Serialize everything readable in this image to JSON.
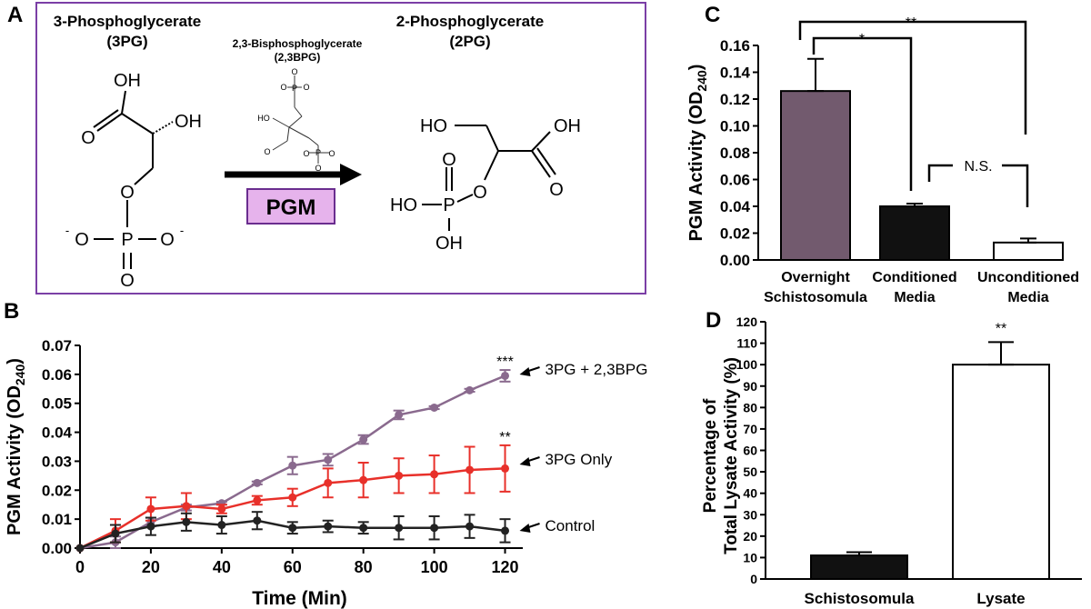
{
  "panel_labels": {
    "a": "A",
    "b": "B",
    "c": "C",
    "d": "D"
  },
  "panel_a": {
    "reactant_name": "3-Phosphoglycerate",
    "reactant_abbr": "(3PG)",
    "cofactor_name": "2,3-Bisphosphoglycerate",
    "cofactor_abbr": "(2,3BPG)",
    "product_name": "2-Phosphoglycerate",
    "product_abbr": "(2PG)",
    "enzyme": "PGM",
    "colors": {
      "border": "#7b3fa6",
      "enzyme_fill": "#e6b3ec",
      "enzyme_border": "#6a2d8f"
    }
  },
  "chart_data": [
    {
      "panel": "B",
      "type": "line",
      "xlabel": "Time (Min)",
      "ylabel": "PGM Activity (OD240)",
      "ylabel_main": "PGM Activity  (OD",
      "ylabel_sub": "240",
      "ylabel_end": ")",
      "xlim": [
        0,
        125
      ],
      "ylim": [
        0,
        0.07
      ],
      "xticks": [
        "0",
        "20",
        "40",
        "60",
        "80",
        "100",
        "120"
      ],
      "yticks": [
        "0.00",
        "0.01",
        "0.02",
        "0.03",
        "0.04",
        "0.05",
        "0.06",
        "0.07"
      ],
      "x": [
        0,
        10,
        20,
        30,
        40,
        50,
        60,
        70,
        80,
        90,
        100,
        110,
        120
      ],
      "series": [
        {
          "name": "3PG + 2,3BPG",
          "color": "#8a6a8e",
          "values": [
            0,
            0.002,
            0.009,
            0.014,
            0.0155,
            0.0225,
            0.0285,
            0.0305,
            0.0375,
            0.046,
            0.0485,
            0.0545,
            0.0595
          ],
          "errors": [
            0,
            0.002,
            0.0015,
            0.001,
            0.0005,
            0.0005,
            0.003,
            0.002,
            0.0015,
            0.0015,
            0.0005,
            0.0005,
            0.002
          ]
        },
        {
          "name": "3PG Only",
          "color": "#e8302a",
          "values": [
            0,
            0.006,
            0.0135,
            0.0145,
            0.0135,
            0.0165,
            0.0175,
            0.0225,
            0.0235,
            0.025,
            0.0255,
            0.027,
            0.0275
          ],
          "errors": [
            0,
            0.004,
            0.004,
            0.0045,
            0.0015,
            0.0015,
            0.003,
            0.005,
            0.006,
            0.006,
            0.0065,
            0.008,
            0.008
          ]
        },
        {
          "name": "Control",
          "color": "#222222",
          "values": [
            0,
            0.005,
            0.0075,
            0.009,
            0.008,
            0.0095,
            0.007,
            0.0075,
            0.007,
            0.007,
            0.007,
            0.0075,
            0.006
          ],
          "errors": [
            0,
            0.003,
            0.003,
            0.003,
            0.003,
            0.003,
            0.002,
            0.002,
            0.002,
            0.004,
            0.004,
            0.004,
            0.004
          ]
        }
      ],
      "legend_labels": [
        "3PG + 2,3BPG",
        "3PG Only",
        "Control"
      ],
      "annotations": [
        "***",
        "**"
      ]
    },
    {
      "panel": "C",
      "type": "bar",
      "ylabel": "PGM Activity (OD240)",
      "ylabel_main": "PGM Activity  (OD",
      "ylabel_sub": "240",
      "ylabel_end": ")",
      "ylim": [
        0,
        0.16
      ],
      "yticks": [
        "0.00",
        "0.02",
        "0.04",
        "0.06",
        "0.08",
        "0.10",
        "0.12",
        "0.14",
        "0.16"
      ],
      "categories": [
        [
          "Overnight",
          "Schistosomula"
        ],
        [
          "Conditioned",
          "Media"
        ],
        [
          "Unconditioned",
          "Media"
        ]
      ],
      "values": [
        0.126,
        0.04,
        0.013
      ],
      "errors": [
        0.024,
        0.002,
        0.003
      ],
      "colors": [
        "#725a6e",
        "#111111",
        "#ffffff"
      ],
      "significance": [
        "**",
        "*",
        "N.S."
      ]
    },
    {
      "panel": "D",
      "type": "bar",
      "ylabel_line1": "Percentage of",
      "ylabel_line2": "Total Lysate Activity  (%)",
      "ylim": [
        0,
        120
      ],
      "yticks": [
        "0",
        "10",
        "20",
        "30",
        "40",
        "50",
        "60",
        "70",
        "80",
        "90",
        "100",
        "110",
        "120"
      ],
      "categories": [
        "Schistosomula",
        "Lysate"
      ],
      "values": [
        11,
        100
      ],
      "errors": [
        1.5,
        10.5
      ],
      "colors": [
        "#111111",
        "#ffffff"
      ],
      "annotations": [
        "**"
      ]
    }
  ]
}
